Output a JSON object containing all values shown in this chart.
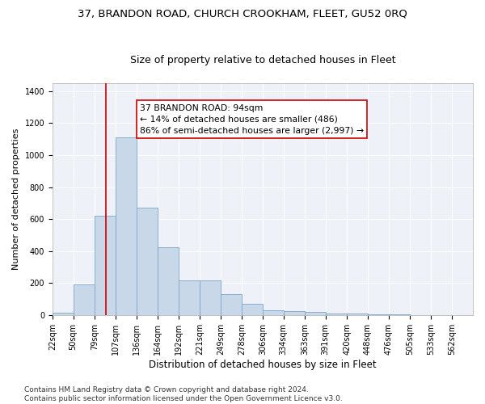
{
  "title": "37, BRANDON ROAD, CHURCH CROOKHAM, FLEET, GU52 0RQ",
  "subtitle": "Size of property relative to detached houses in Fleet",
  "xlabel": "Distribution of detached houses by size in Fleet",
  "ylabel": "Number of detached properties",
  "bar_color": "#c8d8e8",
  "bar_edge_color": "#7aa8c8",
  "background_color": "#eef2f8",
  "grid_color": "#ffffff",
  "annotation_text": "37 BRANDON ROAD: 94sqm\n← 14% of detached houses are smaller (486)\n86% of semi-detached houses are larger (2,997) →",
  "vline_x": 94,
  "vline_color": "#cc0000",
  "bins": [
    22,
    50,
    79,
    107,
    136,
    164,
    192,
    221,
    249,
    278,
    306,
    334,
    363,
    391,
    420,
    448,
    476,
    505,
    533,
    562,
    590
  ],
  "bar_heights": [
    15,
    190,
    620,
    1110,
    670,
    425,
    215,
    215,
    130,
    70,
    28,
    25,
    20,
    10,
    8,
    4,
    3,
    1,
    0,
    0
  ],
  "ylim": [
    0,
    1450
  ],
  "yticks": [
    0,
    200,
    400,
    600,
    800,
    1000,
    1200,
    1400
  ],
  "footnote": "Contains HM Land Registry data © Crown copyright and database right 2024.\nContains public sector information licensed under the Open Government Licence v3.0.",
  "annotation_box_color": "#ffffff",
  "annotation_box_edge": "#cc0000",
  "title_fontsize": 9.5,
  "subtitle_fontsize": 9,
  "ylabel_fontsize": 8,
  "xlabel_fontsize": 8.5,
  "tick_fontsize": 7,
  "footnote_fontsize": 6.5,
  "annotation_fontsize": 7.8
}
